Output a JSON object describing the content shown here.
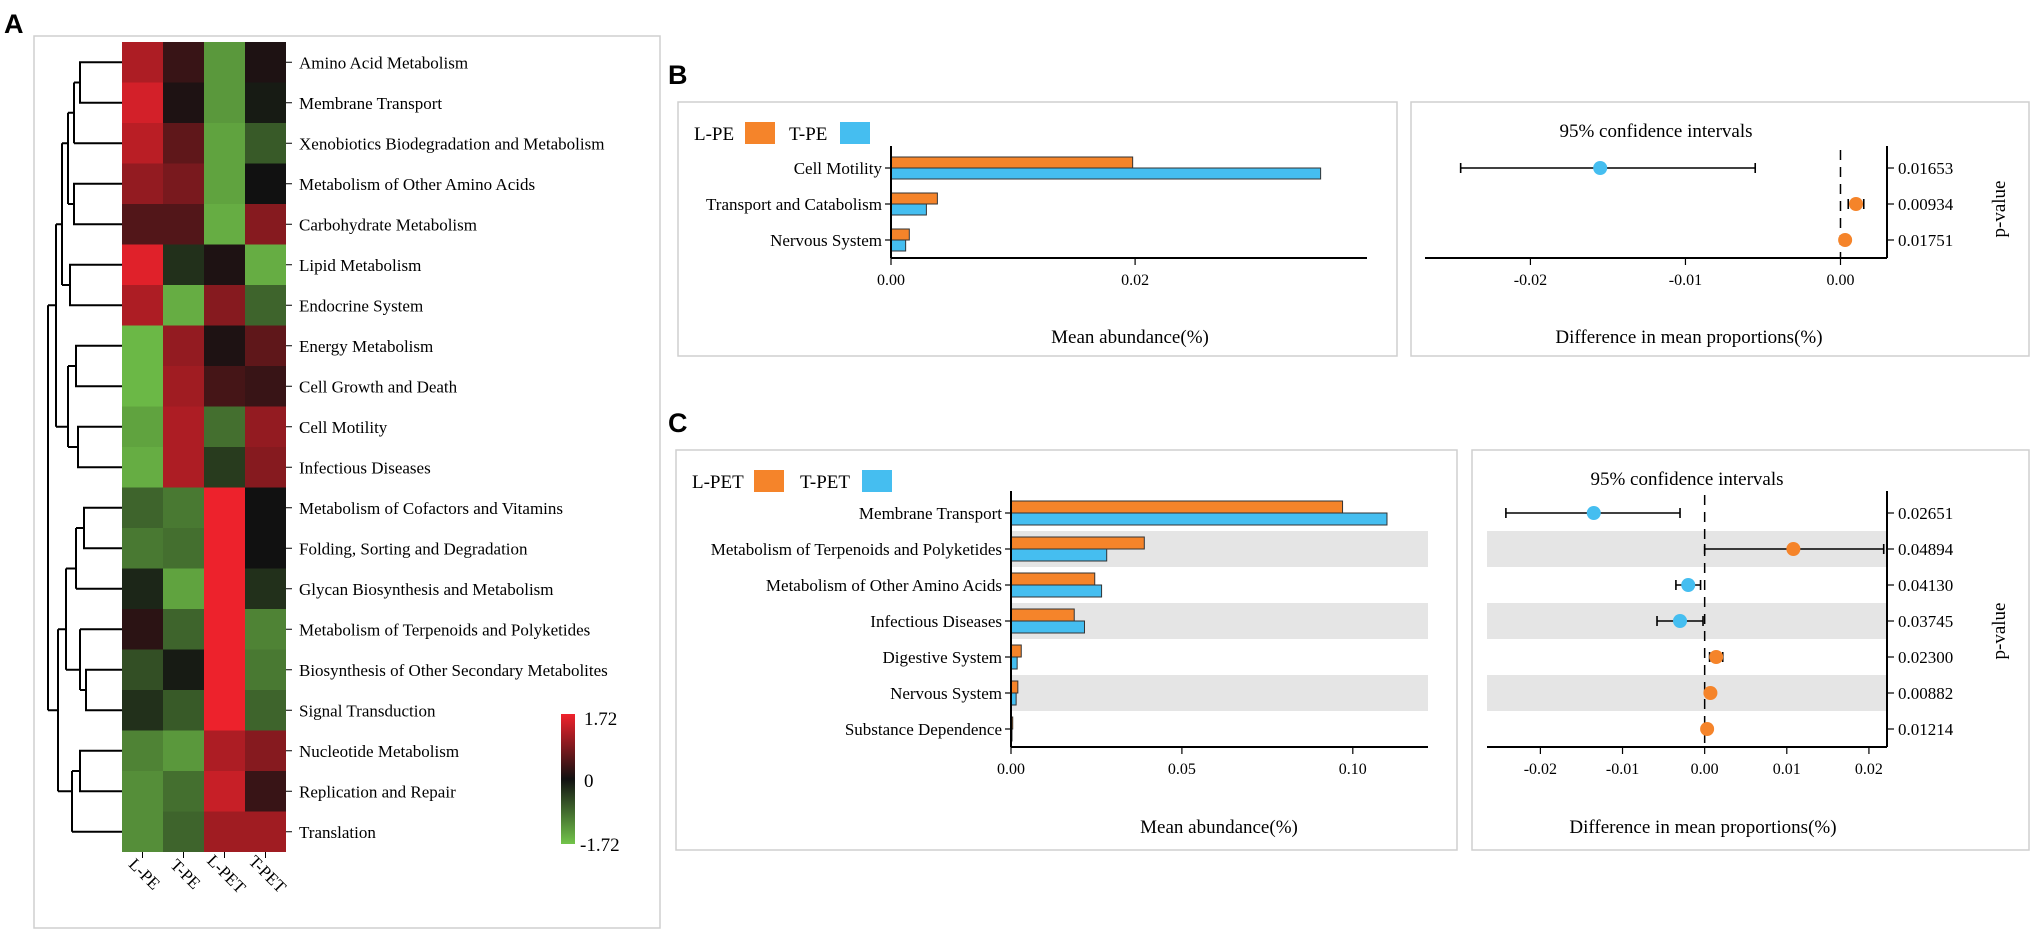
{
  "panel_labels": {
    "a": "A",
    "b": "B",
    "c": "C"
  },
  "colors": {
    "orange": "#F5842A",
    "blue": "#45BEF0",
    "shade": "#E5E5E5",
    "heat_high": "#F0222C",
    "heat_mid": "#111111",
    "heat_low": "#72C44A"
  },
  "chart_data": [
    {
      "id": "heatmap",
      "type": "heatmap",
      "columns": [
        "L-PE",
        "T-PE",
        "L-PET",
        "T-PET"
      ],
      "rows": [
        "Amino Acid Metabolism",
        "Membrane Transport",
        "Xenobiotics Biodegradation and Metabolism",
        "Metabolism of Other Amino Acids",
        "Carbohydrate Metabolism",
        "Lipid Metabolism",
        "Endocrine System",
        "Energy Metabolism",
        "Cell Growth and Death",
        "Cell Motility",
        "Infectious Diseases",
        "Metabolism of Cofactors and Vitamins",
        "Folding, Sorting and Degradation",
        "Glycan Biosynthesis and Metabolism",
        "Metabolism of Terpenoids and Polyketides",
        "Biosynthesis of Other Secondary Metabolites",
        "Signal Transduction",
        "Nucleotide Metabolism",
        "Replication and Repair",
        "Translation"
      ],
      "values": [
        [
          1.2,
          0.3,
          -1.3,
          0.1
        ],
        [
          1.5,
          0.1,
          -1.3,
          -0.1
        ],
        [
          1.3,
          0.6,
          -1.4,
          -0.7
        ],
        [
          1.0,
          0.8,
          -1.4,
          0.0
        ],
        [
          0.5,
          0.5,
          -1.5,
          0.9
        ],
        [
          1.6,
          -0.3,
          0.1,
          -1.5
        ],
        [
          1.2,
          -1.5,
          0.9,
          -0.8
        ],
        [
          -1.6,
          1.0,
          0.1,
          0.6
        ],
        [
          -1.6,
          1.1,
          0.4,
          0.3
        ],
        [
          -1.4,
          1.2,
          -0.9,
          1.0
        ],
        [
          -1.5,
          1.2,
          -0.4,
          0.9
        ],
        [
          -0.8,
          -1.0,
          1.7,
          0.0
        ],
        [
          -1.0,
          -0.9,
          1.7,
          0.0
        ],
        [
          -0.2,
          -1.4,
          1.7,
          -0.3
        ],
        [
          0.2,
          -0.8,
          1.7,
          -1.1
        ],
        [
          -0.6,
          -0.1,
          1.7,
          -1.0
        ],
        [
          -0.3,
          -0.7,
          1.7,
          -0.8
        ],
        [
          -1.1,
          -1.3,
          1.2,
          0.9
        ],
        [
          -1.2,
          -0.9,
          1.4,
          0.3
        ],
        [
          -1.2,
          -0.8,
          1.1,
          1.1
        ]
      ],
      "colorbar": {
        "max": 1.72,
        "min": -1.72,
        "max_label": "1.72",
        "mid_label": "0",
        "min_label": "-1.72"
      }
    },
    {
      "id": "panel_b",
      "type": "bar",
      "legend": [
        "L-PE",
        "T-PE"
      ],
      "categories": [
        "Cell Motility",
        "Transport and Catabolism",
        "Nervous System"
      ],
      "series": [
        {
          "name": "L-PE",
          "values": [
            0.0198,
            0.0038,
            0.0015
          ]
        },
        {
          "name": "T-PE",
          "values": [
            0.0352,
            0.0029,
            0.0012
          ]
        }
      ],
      "xlabel": "Mean abundance(%)",
      "xlim": [
        0,
        0.039
      ],
      "xticks": [
        0.0,
        0.02
      ],
      "xtick_labels": [
        "0.00",
        "0.02"
      ]
    },
    {
      "id": "panel_b_ci",
      "type": "scatter",
      "title": "95% confidence intervals",
      "points": [
        {
          "category": "Cell Motility",
          "diff": -0.0155,
          "low": -0.0245,
          "high": -0.0055,
          "group": "T-PE"
        },
        {
          "category": "Transport and Catabolism",
          "diff": 0.001,
          "low": 0.0005,
          "high": 0.0015,
          "group": "L-PE"
        },
        {
          "category": "Nervous System",
          "diff": 0.0003,
          "low": 0.0001,
          "high": 0.0005,
          "group": "L-PE"
        }
      ],
      "p_values": [
        "0.01653",
        "0.00934",
        "0.01751"
      ],
      "xlabel": "Difference in mean proportions(%)",
      "ylabel": "p-value",
      "xlim": [
        -0.0268,
        0.003
      ],
      "xticks": [
        -0.02,
        -0.01,
        0.0
      ],
      "xtick_labels": [
        "-0.02",
        "-0.01",
        "0.00"
      ]
    },
    {
      "id": "panel_c",
      "type": "bar",
      "legend": [
        "L-PET",
        "T-PET"
      ],
      "categories": [
        "Membrane Transport",
        "Metabolism of Terpenoids and Polyketides",
        "Metabolism of Other Amino Acids",
        "Infectious Diseases",
        "Digestive System",
        "Nervous System",
        "Substance Dependence"
      ],
      "series": [
        {
          "name": "L-PET",
          "values": [
            0.097,
            0.039,
            0.0245,
            0.0185,
            0.003,
            0.002,
            0.0005
          ]
        },
        {
          "name": "T-PET",
          "values": [
            0.11,
            0.028,
            0.0265,
            0.0215,
            0.0018,
            0.0015,
            0.0002
          ]
        }
      ],
      "xlabel": "Mean abundance(%)",
      "xlim": [
        0,
        0.122
      ],
      "xticks": [
        0.0,
        0.05,
        0.1
      ],
      "xtick_labels": [
        "0.00",
        "0.05",
        "0.10"
      ]
    },
    {
      "id": "panel_c_ci",
      "type": "scatter",
      "title": "95% confidence intervals",
      "points": [
        {
          "category": "Membrane Transport",
          "diff": -0.0135,
          "low": -0.0242,
          "high": -0.003,
          "group": "T-PET"
        },
        {
          "category": "Metabolism of Terpenoids and Polyketides",
          "diff": 0.0108,
          "low": 0.0,
          "high": 0.0218,
          "group": "L-PET"
        },
        {
          "category": "Metabolism of Other Amino Acids",
          "diff": -0.002,
          "low": -0.0035,
          "high": -0.0005,
          "group": "T-PET"
        },
        {
          "category": "Infectious Diseases",
          "diff": -0.003,
          "low": -0.0058,
          "high": -0.0002,
          "group": "T-PET"
        },
        {
          "category": "Digestive System",
          "diff": 0.0014,
          "low": 0.0006,
          "high": 0.0022,
          "group": "L-PET"
        },
        {
          "category": "Nervous System",
          "diff": 0.0007,
          "low": 0.0003,
          "high": 0.0011,
          "group": "L-PET"
        },
        {
          "category": "Substance Dependence",
          "diff": 0.0003,
          "low": 0.0001,
          "high": 0.0005,
          "group": "L-PET"
        }
      ],
      "p_values": [
        "0.02651",
        "0.04894",
        "0.04130",
        "0.03745",
        "0.02300",
        "0.00882",
        "0.01214"
      ],
      "xlabel": "Difference in mean proportions(%)",
      "ylabel": "p-value",
      "xlim": [
        -0.0265,
        0.0222
      ],
      "xticks": [
        -0.02,
        -0.01,
        0.0,
        0.01,
        0.02
      ],
      "xtick_labels": [
        "-0.02",
        "-0.01",
        "0.00",
        "0.01",
        "0.02"
      ]
    }
  ]
}
